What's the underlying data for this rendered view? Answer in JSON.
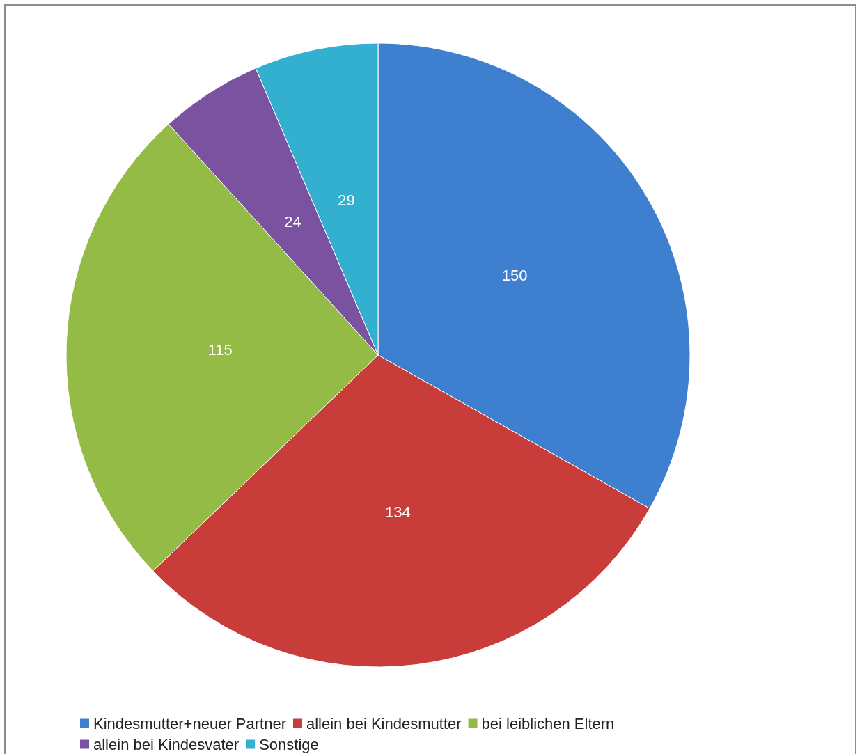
{
  "chart_data": {
    "type": "pie",
    "categories": [
      "Kindesmutter+neuer Partner",
      "allein bei Kindesmutter",
      "bei leiblichen Eltern",
      "allein bei Kindesvater",
      "Sonstige"
    ],
    "values": [
      150,
      134,
      115,
      24,
      29
    ],
    "colors": [
      "#3f7fcf",
      "#c83c3a",
      "#94bb45",
      "#7a52a0",
      "#33b0d0"
    ],
    "data_labels": true,
    "legend": "bottom"
  }
}
